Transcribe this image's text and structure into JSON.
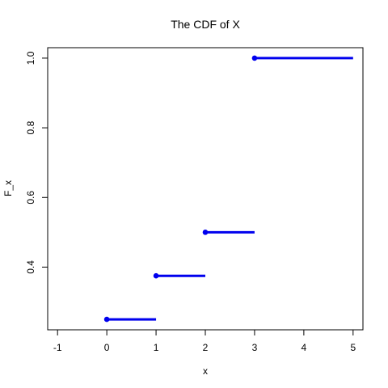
{
  "chart_data": {
    "type": "line",
    "title": "The CDF of X",
    "xlabel": "x",
    "ylabel": "F_x",
    "xlim": [
      -1.2,
      5.2
    ],
    "ylim": [
      0.22,
      1.03
    ],
    "x_ticks": [
      "-1",
      "0",
      "1",
      "2",
      "3",
      "4",
      "5"
    ],
    "y_ticks": [
      "0.4",
      "0.6",
      "0.8",
      "1.0"
    ],
    "grid": false,
    "legend": "none",
    "series_color": "#0000ee",
    "steps": [
      {
        "x_start": 0,
        "x_end": 1,
        "y": 0.25
      },
      {
        "x_start": 1,
        "x_end": 2,
        "y": 0.375
      },
      {
        "x_start": 2,
        "x_end": 3,
        "y": 0.5
      },
      {
        "x_start": 3,
        "x_end": 5,
        "y": 1.0
      }
    ]
  }
}
